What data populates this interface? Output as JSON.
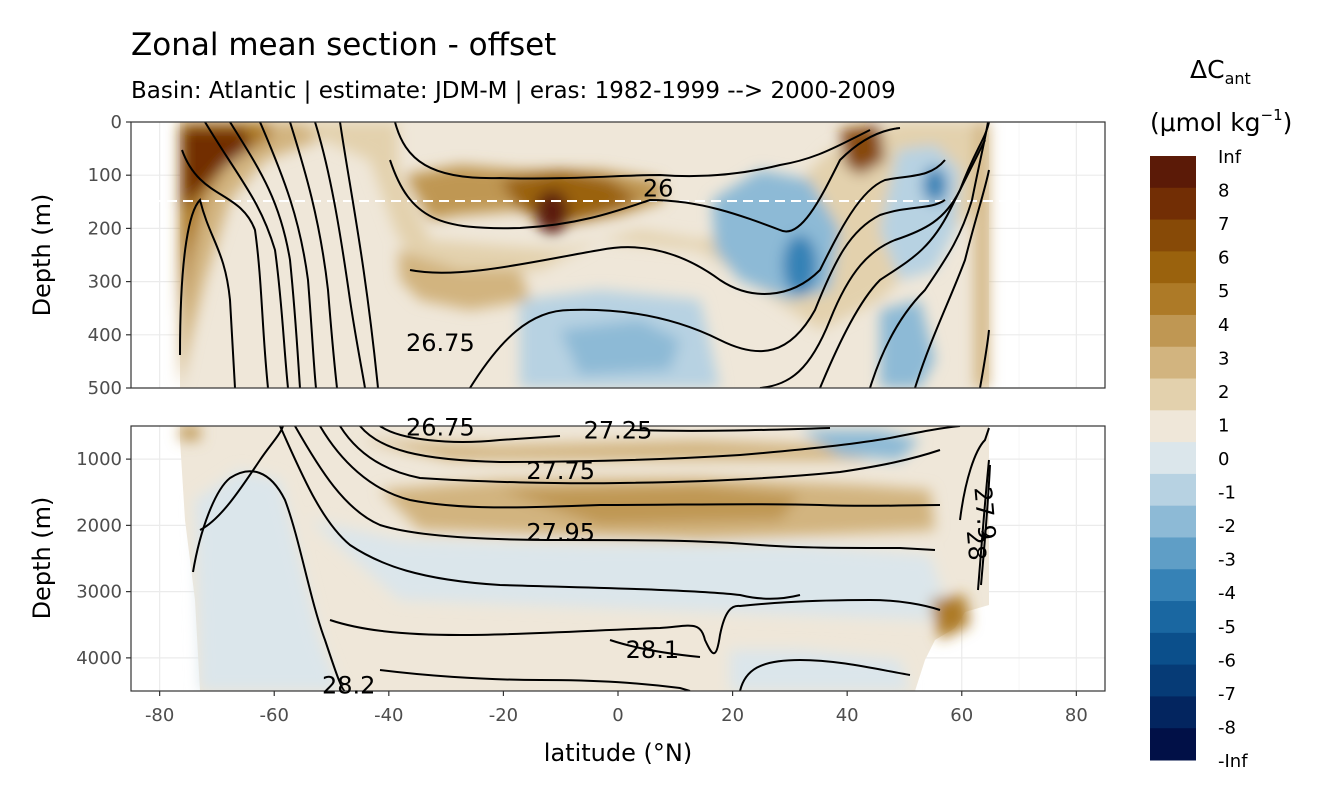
{
  "chart_data": {
    "type": "heatmap",
    "title": "Zonal mean section - offset",
    "subtitle": "Basin: Atlantic | estimate: JDM-M | eras: 1982-1999 --> 2000-2009",
    "xlabel": "latitude (°N)",
    "ylabel_upper": "Depth (m)",
    "ylabel_lower": "Depth (m)",
    "xlim": [
      -85,
      85
    ],
    "x_ticks": [
      -80,
      -60,
      -40,
      -20,
      0,
      20,
      40,
      60,
      80
    ],
    "x_tick_labels": [
      "-80",
      "-60",
      "-40",
      "-20",
      "0",
      "20",
      "40",
      "60",
      "80"
    ],
    "panels": [
      {
        "name": "upper",
        "ylim": [
          500,
          0
        ],
        "y_ticks": [
          0,
          100,
          200,
          300,
          400,
          500
        ],
        "y_tick_labels": [
          "0",
          "100",
          "200",
          "300",
          "400",
          "500"
        ]
      },
      {
        "name": "lower",
        "ylim": [
          4500,
          500
        ],
        "y_ticks": [
          1000,
          2000,
          3000,
          4000
        ],
        "y_tick_labels": [
          "1000",
          "2000",
          "3000",
          "4000"
        ]
      }
    ],
    "reference_depth_line": 150,
    "legend": {
      "title": "ΔC",
      "title_sub": "ant",
      "units_prefix": "(μmol kg",
      "units_sup": "−1",
      "units_suffix": ")",
      "labels": [
        "Inf",
        "8",
        "7",
        "6",
        "5",
        "4",
        "3",
        "2",
        "1",
        "0",
        "-1",
        "-2",
        "-3",
        "-4",
        "-5",
        "-6",
        "-7",
        "-8",
        "-Inf"
      ],
      "colors": [
        "#5b1a07",
        "#722e05",
        "#874a07",
        "#9a620d",
        "#ad7a27",
        "#bf9753",
        "#d2b47f",
        "#e3d1ad",
        "#efe7d9",
        "#dbe6eb",
        "#b7d2e2",
        "#8dbad6",
        "#5f9ec6",
        "#3682b6",
        "#1a67a1",
        "#0b4f8b",
        "#063b76",
        "#03255f",
        "#011047"
      ]
    },
    "contour_labels": [
      {
        "label": "26",
        "lat": 7,
        "depth": 125
      },
      {
        "label": "26.75",
        "lat": -31,
        "depth": 415
      },
      {
        "label": "26.75",
        "lat": -31,
        "depth": 520
      },
      {
        "label": "27.25",
        "lat": 0,
        "depth": 570
      },
      {
        "label": "27.75",
        "lat": -10,
        "depth": 1180
      },
      {
        "label": "27.95",
        "lat": -10,
        "depth": 2110
      },
      {
        "label": "28.1",
        "lat": 6,
        "depth": 3880
      },
      {
        "label": "28.2",
        "lat": -47,
        "depth": 4420
      },
      {
        "label": "28",
        "lat": 62.5,
        "depth": 2300
      },
      {
        "label": "27.9",
        "lat": 64,
        "depth": 1820
      }
    ]
  }
}
